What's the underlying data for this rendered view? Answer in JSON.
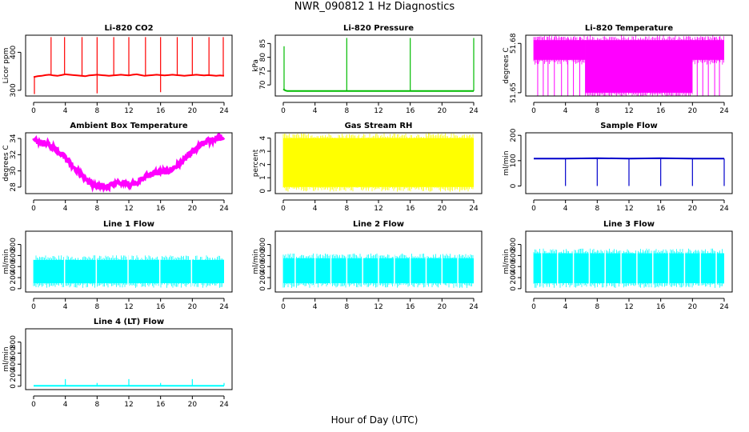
{
  "title": "NWR_090812  1 Hz Diagnostics",
  "xlabel": "Hour of Day (UTC)",
  "chart_data": [
    {
      "type": "line",
      "title": "Li-820 CO2",
      "ylabel": "Licor ppm",
      "color": "#ff0000",
      "xlim": [
        0,
        24
      ],
      "ylim": [
        285,
        445
      ],
      "xticks": [
        0,
        4,
        8,
        12,
        16,
        20,
        24
      ],
      "yticks": [
        300,
        400
      ],
      "series": [
        {
          "x": [
            0,
            0.5,
            1,
            1.5,
            2,
            2.5,
            3,
            3.5,
            4,
            4.5,
            5,
            5.5,
            6,
            6.5,
            7,
            7.5,
            8,
            8.5,
            9,
            9.5,
            10,
            10.5,
            11,
            11.5,
            12,
            12.5,
            13,
            13.5,
            14,
            14.5,
            15,
            15.5,
            16,
            16.5,
            17,
            17.5,
            18,
            18.5,
            19,
            19.5,
            20,
            20.5,
            21,
            21.5,
            22,
            22.5,
            23,
            23.5,
            24
          ],
          "y": [
            335,
            337,
            338,
            340,
            341,
            339,
            338,
            340,
            342,
            341,
            340,
            339,
            338,
            337,
            339,
            340,
            341,
            340,
            339,
            338,
            339,
            340,
            341,
            340,
            339,
            341,
            342,
            340,
            338,
            339,
            340,
            341,
            340,
            339,
            340,
            341,
            340,
            339,
            338,
            339,
            340,
            341,
            340,
            339,
            340,
            339,
            338,
            339,
            338
          ]
        }
      ],
      "spikes": [
        {
          "x": 2.2,
          "y": 440
        },
        {
          "x": 3.9,
          "y": 440
        },
        {
          "x": 6.1,
          "y": 440
        },
        {
          "x": 8.0,
          "y": 440
        },
        {
          "x": 10.1,
          "y": 440
        },
        {
          "x": 12.0,
          "y": 440
        },
        {
          "x": 14.1,
          "y": 440
        },
        {
          "x": 16.0,
          "y": 440
        },
        {
          "x": 18.1,
          "y": 440
        },
        {
          "x": 20.0,
          "y": 440
        },
        {
          "x": 22.1,
          "y": 440
        },
        {
          "x": 23.9,
          "y": 440
        },
        {
          "x": 0.1,
          "y": 290
        },
        {
          "x": 8.0,
          "y": 292
        },
        {
          "x": 16.0,
          "y": 295
        }
      ]
    },
    {
      "type": "line",
      "title": "Li-820 Pressure",
      "ylabel": "kPa",
      "color": "#00bb00",
      "xlim": [
        0,
        24
      ],
      "ylim": [
        66,
        88
      ],
      "xticks": [
        0,
        4,
        8,
        12,
        16,
        20,
        24
      ],
      "yticks": [
        70,
        75,
        80,
        85
      ],
      "series": [
        {
          "x": [
            0,
            0.25,
            0.5,
            1,
            4,
            8,
            12,
            16,
            20,
            23.8,
            24
          ],
          "y": [
            68.5,
            68,
            67.8,
            67.8,
            67.8,
            67.8,
            67.8,
            67.8,
            67.8,
            67.8,
            67.8
          ]
        }
      ],
      "spikes": [
        {
          "x": 0.1,
          "y": 84
        },
        {
          "x": 8.0,
          "y": 87
        },
        {
          "x": 16.0,
          "y": 87
        },
        {
          "x": 24.0,
          "y": 87
        }
      ]
    },
    {
      "type": "area",
      "title": "Li-820 Temperature",
      "ylabel": "degrees C",
      "color": "#ff00ff",
      "xlim": [
        0,
        24
      ],
      "ylim": [
        51.648,
        51.685
      ],
      "xticks": [
        0,
        4,
        8,
        12,
        16,
        20,
        24
      ],
      "yticks": [
        51.65,
        51.68
      ],
      "bands": [
        {
          "x": [
            0,
            6.5
          ],
          "low": 51.67,
          "high": 51.682
        },
        {
          "x": 6.5,
          "low": 51.655,
          "high": 51.682
        },
        {
          "x": [
            6.5,
            20
          ],
          "low": 51.65,
          "high": 51.682
        },
        {
          "x": [
            20,
            24
          ],
          "low": 51.67,
          "high": 51.682
        }
      ],
      "dropouts": [
        0.5,
        1.2,
        1.8,
        2.6,
        3.5,
        4.3,
        5.0,
        5.8,
        19.7,
        20.6,
        21.3,
        22.0,
        22.8,
        23.4
      ]
    },
    {
      "type": "line",
      "title": "Ambient Box Temperature",
      "ylabel": "degrees C",
      "color": "#ff00ff",
      "xlim": [
        0,
        24
      ],
      "ylim": [
        27.2,
        34.7
      ],
      "xticks": [
        0,
        4,
        8,
        12,
        16,
        20,
        24
      ],
      "yticks": [
        28,
        30,
        32,
        34
      ],
      "series": [
        {
          "x": [
            0,
            1,
            2,
            3,
            4,
            5,
            6,
            7,
            8,
            9,
            10,
            11,
            12,
            13,
            14,
            15,
            16,
            17,
            18,
            19,
            20,
            21,
            22,
            23,
            24
          ],
          "y": [
            33.7,
            33.5,
            33.2,
            32.6,
            31.7,
            30.6,
            29.5,
            28.6,
            28.0,
            28.0,
            28.4,
            28.5,
            28.4,
            28.6,
            29.2,
            29.7,
            29.8,
            30.0,
            30.6,
            31.4,
            32.3,
            33.1,
            33.7,
            34.0,
            34.1
          ]
        }
      ],
      "noise": 0.35
    },
    {
      "type": "area",
      "title": "Gas Stream RH",
      "ylabel": "percent",
      "color": "#ffff00",
      "xlim": [
        0,
        24
      ],
      "ylim": [
        -0.2,
        4.4
      ],
      "xticks": [
        0,
        4,
        8,
        12,
        16,
        20,
        24
      ],
      "yticks": [
        0,
        1,
        2,
        3,
        4
      ],
      "bands": [
        {
          "x": [
            0,
            24
          ],
          "low": 0.3,
          "high": 4.0
        }
      ]
    },
    {
      "type": "line",
      "title": "Sample Flow",
      "ylabel": "ml/min",
      "color": "#0000cc",
      "xlim": [
        0,
        24
      ],
      "ylim": [
        -30,
        210
      ],
      "xticks": [
        0,
        4,
        8,
        12,
        16,
        20,
        24
      ],
      "yticks": [
        0,
        100,
        200
      ],
      "series": [
        {
          "x": [
            0,
            4,
            8,
            12,
            16,
            20,
            24
          ],
          "y": [
            108,
            108,
            110,
            108,
            110,
            108,
            108
          ]
        }
      ],
      "spikes": [
        {
          "x": 4.0,
          "y": 0
        },
        {
          "x": 8.0,
          "y": 0
        },
        {
          "x": 12.0,
          "y": 0
        },
        {
          "x": 16.0,
          "y": 0
        },
        {
          "x": 20.0,
          "y": 0
        },
        {
          "x": 24.0,
          "y": 0
        }
      ]
    },
    {
      "type": "area",
      "title": "Line 1 Flow",
      "ylabel": "ml/min",
      "color": "#00ffff",
      "xlim": [
        0,
        24
      ],
      "ylim": [
        -60,
        1040
      ],
      "xticks": [
        0,
        4,
        8,
        12,
        16,
        20,
        24
      ],
      "yticks": [
        0,
        200,
        400,
        600,
        800
      ],
      "bands": [
        {
          "x": [
            0,
            24
          ],
          "low": 100,
          "high": 520
        }
      ],
      "gaps": [
        3.9,
        7.9,
        11.9,
        15.9,
        19.9
      ]
    },
    {
      "type": "area",
      "title": "Line 2 Flow",
      "ylabel": "ml/min",
      "color": "#00ffff",
      "xlim": [
        0,
        24
      ],
      "ylim": [
        -60,
        1040
      ],
      "xticks": [
        0,
        4,
        8,
        12,
        16,
        20,
        24
      ],
      "yticks": [
        0,
        200,
        400,
        600,
        800
      ],
      "bands": [
        {
          "x": [
            0,
            24
          ],
          "low": 100,
          "high": 550
        }
      ],
      "gaps": [
        1.5,
        4.0,
        6.0,
        8.0,
        10.0,
        12.0,
        14.0,
        16.0,
        18.0,
        20.0,
        22.0
      ]
    },
    {
      "type": "area",
      "title": "Line 3 Flow",
      "ylabel": "ml/min",
      "color": "#00ffff",
      "xlim": [
        0,
        24
      ],
      "ylim": [
        -60,
        1040
      ],
      "xticks": [
        0,
        4,
        8,
        12,
        16,
        20,
        24
      ],
      "yticks": [
        0,
        200,
        400,
        600,
        800
      ],
      "bands": [
        {
          "x": [
            0,
            24
          ],
          "low": 100,
          "high": 640
        }
      ],
      "gaps": [
        1.0,
        3.0,
        5.0,
        7.0,
        9.0,
        11.0,
        13.0,
        15.0,
        17.0,
        19.0,
        21.0,
        23.0
      ]
    },
    {
      "type": "line",
      "title": "Line 4 (LT) Flow",
      "ylabel": "ml/min",
      "color": "#00ffff",
      "xlim": [
        0,
        24
      ],
      "ylim": [
        -60,
        1040
      ],
      "xticks": [
        0,
        4,
        8,
        12,
        16,
        20,
        24
      ],
      "yticks": [
        0,
        200,
        400,
        600,
        800
      ],
      "series": [
        {
          "x": [
            0,
            24
          ],
          "y": [
            10,
            10
          ]
        }
      ],
      "spikes": [
        {
          "x": 4.0,
          "y": 130
        },
        {
          "x": 8.0,
          "y": 60
        },
        {
          "x": 12.0,
          "y": 130
        },
        {
          "x": 16.0,
          "y": 60
        },
        {
          "x": 20.0,
          "y": 130
        },
        {
          "x": 24.0,
          "y": 60
        }
      ]
    }
  ]
}
